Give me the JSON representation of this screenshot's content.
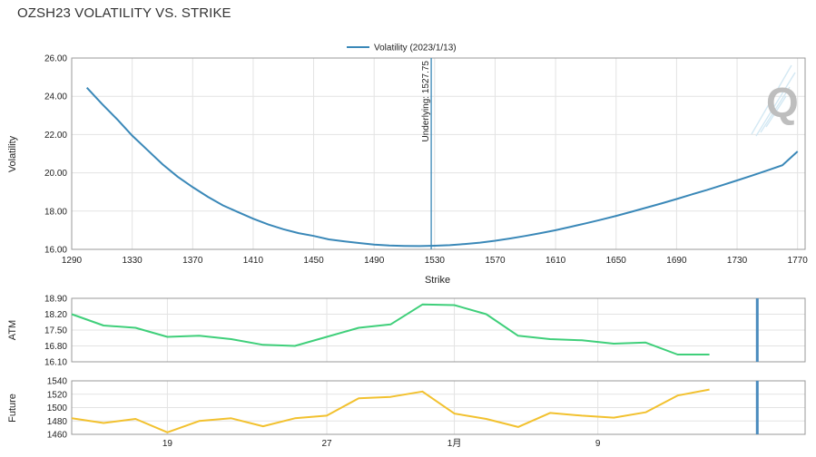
{
  "page_title": "OZSH23 VOLATILITY VS. STRIKE",
  "chart_data": [
    {
      "type": "line",
      "legend": {
        "label": "Volatility (2023/1/13)",
        "placement": "top-center"
      },
      "xlabel": "Strike",
      "ylabel": "Volatility",
      "xlim": [
        1290,
        1775
      ],
      "ylim": [
        16,
        26
      ],
      "x_ticks": [
        "1290",
        "1330",
        "1370",
        "1410",
        "1450",
        "1490",
        "1530",
        "1570",
        "1610",
        "1650",
        "1690",
        "1730",
        "1770"
      ],
      "y_ticks": [
        "16.00",
        "18.00",
        "20.00",
        "22.00",
        "24.00",
        "26.00"
      ],
      "grid": true,
      "color": "#3a88b8",
      "series": [
        {
          "name": "Volatility (2023/1/13)",
          "x": [
            1300,
            1310,
            1320,
            1330,
            1340,
            1350,
            1360,
            1370,
            1380,
            1390,
            1400,
            1410,
            1420,
            1430,
            1440,
            1450,
            1460,
            1470,
            1480,
            1490,
            1500,
            1510,
            1520,
            1530,
            1540,
            1550,
            1560,
            1570,
            1580,
            1590,
            1600,
            1610,
            1620,
            1630,
            1640,
            1650,
            1660,
            1670,
            1680,
            1690,
            1700,
            1710,
            1720,
            1730,
            1740,
            1750,
            1760,
            1770
          ],
          "y": [
            24.45,
            23.6,
            22.8,
            21.95,
            21.2,
            20.45,
            19.8,
            19.25,
            18.75,
            18.3,
            17.95,
            17.6,
            17.3,
            17.05,
            16.85,
            16.7,
            16.52,
            16.42,
            16.33,
            16.25,
            16.2,
            16.18,
            16.17,
            16.19,
            16.22,
            16.28,
            16.35,
            16.45,
            16.57,
            16.7,
            16.85,
            17.0,
            17.18,
            17.36,
            17.55,
            17.75,
            17.96,
            18.18,
            18.4,
            18.63,
            18.87,
            19.1,
            19.35,
            19.6,
            19.86,
            20.13,
            20.4,
            21.12
          ]
        }
      ],
      "annotation": {
        "type": "vertical-line",
        "x": 1527.75,
        "label": "Underlying: 1527.75"
      }
    },
    {
      "type": "line",
      "ylabel": "ATM",
      "ylim": [
        16.1,
        18.9
      ],
      "y_ticks": [
        "16.10",
        "16.80",
        "17.50",
        "18.20",
        "18.90"
      ],
      "x_index_range": [
        0,
        23
      ],
      "x_ticks": [
        {
          "index": 3,
          "label": "19"
        },
        {
          "index": 8,
          "label": "27"
        },
        {
          "index": 12,
          "label": "1月"
        },
        {
          "index": 16.5,
          "label": "9"
        }
      ],
      "grid": true,
      "color": "#3fcf7a",
      "marker_index": 21.5,
      "series": [
        {
          "name": "",
          "values": [
            18.2,
            17.7,
            17.6,
            17.2,
            17.25,
            17.1,
            16.85,
            16.8,
            17.2,
            17.6,
            17.75,
            18.63,
            18.6,
            18.2,
            17.25,
            17.1,
            17.05,
            16.9,
            16.95,
            16.42,
            16.42
          ]
        }
      ]
    },
    {
      "type": "line",
      "ylabel": "Future",
      "ylim": [
        1460,
        1540
      ],
      "y_ticks": [
        "1460",
        "1480",
        "1500",
        "1520",
        "1540"
      ],
      "x_index_range": [
        0,
        23
      ],
      "x_ticks": [
        {
          "index": 3,
          "label": "19"
        },
        {
          "index": 8,
          "label": "27"
        },
        {
          "index": 12,
          "label": "1月"
        },
        {
          "index": 16.5,
          "label": "9"
        }
      ],
      "grid": true,
      "color": "#f2c12e",
      "marker_index": 21.5,
      "series": [
        {
          "name": "",
          "values": [
            1484,
            1477,
            1483,
            1463,
            1480,
            1484,
            1472,
            1484,
            1488,
            1514,
            1516,
            1524,
            1491,
            1483,
            1471,
            1492,
            1488,
            1485,
            1493,
            1518,
            1527
          ]
        }
      ]
    }
  ]
}
